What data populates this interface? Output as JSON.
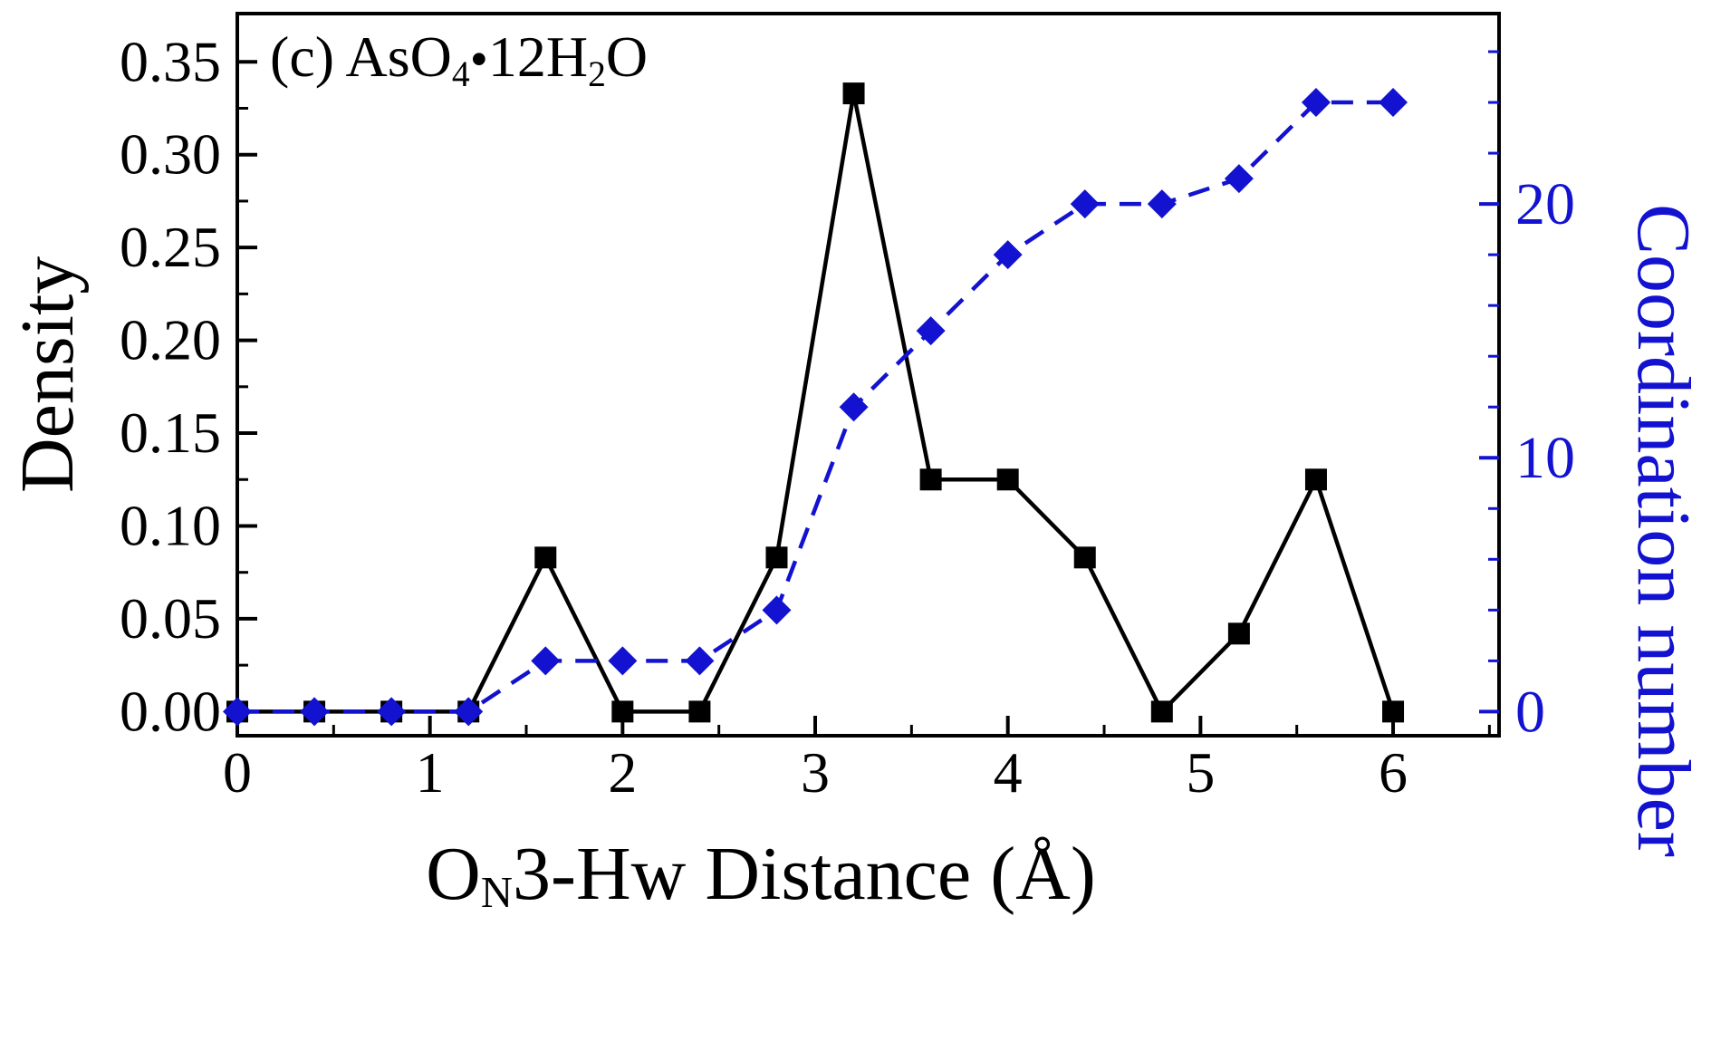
{
  "chart_data": {
    "type": "line",
    "title": "(c) AsO4•12H2O",
    "annotation_parts": [
      {
        "t": "(c) AsO"
      },
      {
        "t": "4"
      },
      {
        "t": "•"
      },
      {
        "t": "12H"
      },
      {
        "t": "2"
      },
      {
        "t": "O"
      }
    ],
    "xlabel": "ON3-Hw Distance (Å)",
    "xlabel_parts": [
      {
        "t": "O"
      },
      {
        "t": "N"
      },
      {
        "t": "3-Hw Distance (Å)"
      }
    ],
    "ylabel_left": "Density",
    "ylabel_right": "Coordination number",
    "x": [
      0,
      0.4,
      0.8,
      1.2,
      1.6,
      2.0,
      2.4,
      2.8,
      3.2,
      3.6,
      4.0,
      4.4,
      4.8,
      5.2,
      5.6,
      6.0
    ],
    "series": [
      {
        "name": "Density",
        "axis": "left",
        "marker": "square",
        "line_style": "solid",
        "values": [
          0,
          0,
          0,
          0,
          0.083,
          0,
          0,
          0.083,
          0.333,
          0.125,
          0.125,
          0.083,
          0,
          0.042,
          0.125,
          0
        ]
      },
      {
        "name": "Coordination number",
        "axis": "right",
        "marker": "diamond",
        "line_style": "dashed",
        "values": [
          0,
          0,
          0,
          0,
          2,
          2,
          2,
          4,
          12,
          15,
          18,
          20,
          20,
          21,
          24,
          24
        ]
      }
    ],
    "x_axis": {
      "lim": [
        0,
        6.55
      ],
      "major_ticks": [
        0,
        1,
        2,
        3,
        4,
        5,
        6
      ],
      "minor_step": 0.5
    },
    "left_axis": {
      "lim": [
        -0.013,
        0.376
      ],
      "major_ticks": [
        "0.00",
        "0.05",
        "0.10",
        "0.15",
        "0.20",
        "0.25",
        "0.30",
        "0.35"
      ]
    },
    "right_axis": {
      "lim": [
        -0.95,
        27.5
      ],
      "major_ticks": [
        0,
        10,
        20
      ],
      "minor_step": 2
    },
    "colors": {
      "foreground": "#000000",
      "accent_blue": "#1212d0"
    },
    "legend": "none",
    "grid": false
  }
}
